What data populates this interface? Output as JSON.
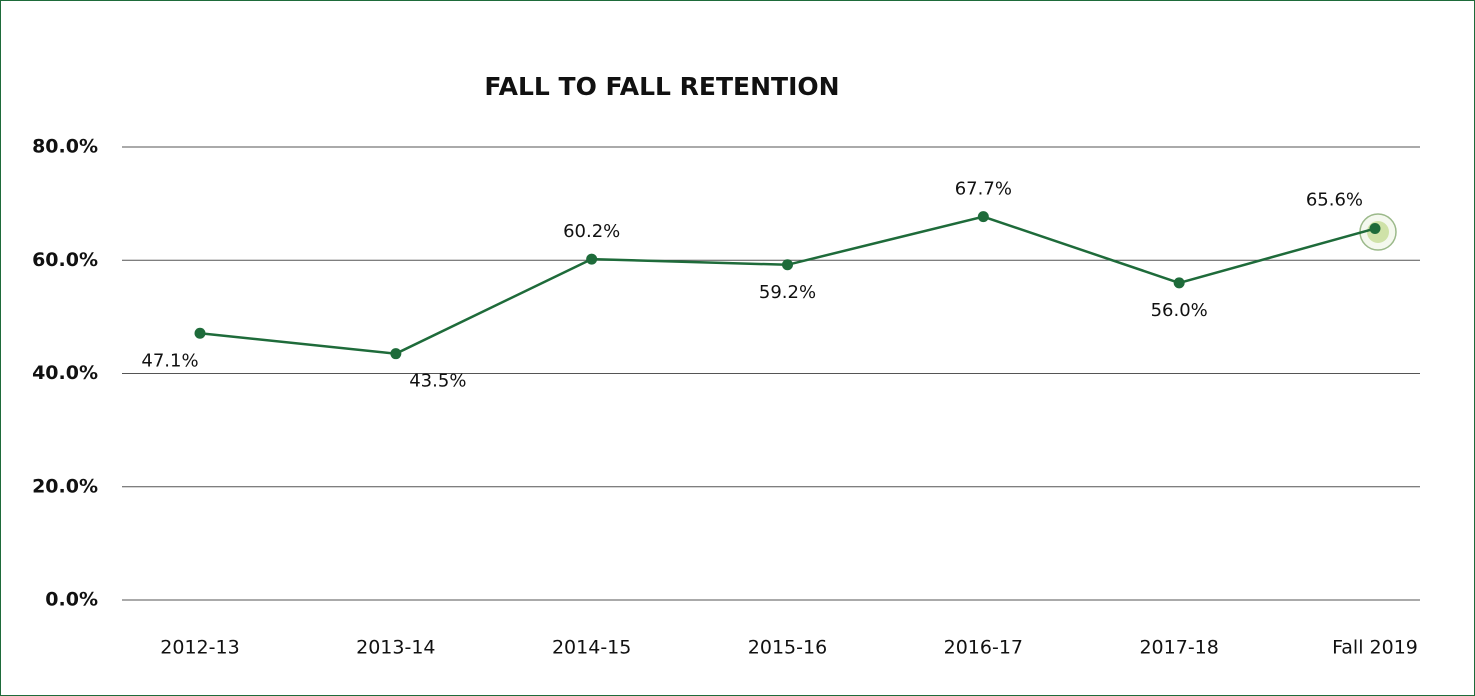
{
  "chart_data": {
    "type": "line",
    "title": "FALL TO FALL RETENTION",
    "categories": [
      "2012-13",
      "2013-14",
      "2014-15",
      "2015-16",
      "2016-17",
      "2017-18",
      "Fall 2019"
    ],
    "series": [
      {
        "color": "#1e6b3a",
        "values": [
          47.1,
          43.5,
          60.2,
          59.2,
          67.7,
          56.0,
          65.6
        ],
        "value_labels": [
          "47.1%",
          "43.5%",
          "60.2%",
          "59.2%",
          "67.7%",
          "56.0%",
          "65.6%"
        ]
      }
    ],
    "ylim": [
      0,
      80
    ],
    "yticks": [
      {
        "value": 0,
        "label": "0.0%"
      },
      {
        "value": 20,
        "label": "20.0%"
      },
      {
        "value": 40,
        "label": "40.0%"
      },
      {
        "value": 60,
        "label": "60.0%"
      },
      {
        "value": 80,
        "label": "80.0%"
      }
    ],
    "grid": true
  }
}
